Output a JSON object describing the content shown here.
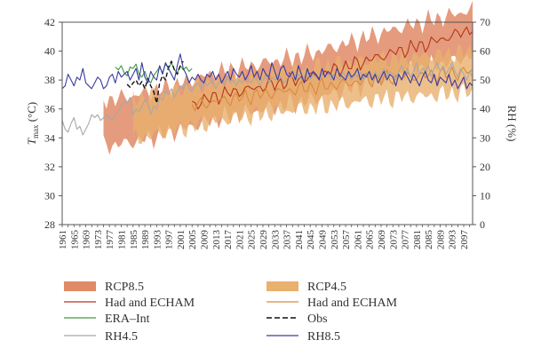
{
  "chart_data": {
    "type": "line",
    "x_start": 1961,
    "x_end": 2100,
    "x_tick_labels": [
      "1961",
      "1965",
      "1969",
      "1973",
      "1977",
      "1981",
      "1985",
      "1989",
      "1993",
      "1997",
      "2001",
      "2005",
      "2009",
      "2013",
      "2017",
      "2021",
      "2025",
      "2029",
      "2033",
      "2037",
      "2041",
      "2045",
      "2049",
      "2053",
      "2057",
      "2061",
      "2065",
      "2069",
      "2073",
      "2077",
      "2081",
      "2085",
      "2089",
      "2093",
      "2097"
    ],
    "y_left": {
      "label_main": "T",
      "label_sub": "max",
      "label_unit": " (°C)",
      "ylim": [
        28,
        42
      ],
      "ticks": [
        "28",
        "30",
        "32",
        "34",
        "36",
        "38",
        "40",
        "42"
      ]
    },
    "y_right": {
      "label": "RH (%)",
      "ylim": [
        0,
        70
      ],
      "ticks": [
        "0",
        "10",
        "20",
        "30",
        "40",
        "50",
        "60",
        "70"
      ]
    },
    "legend": [
      {
        "label": "RCP8.5",
        "kind": "band",
        "color": "#e08a66"
      },
      {
        "label": "RCP4.5",
        "kind": "band",
        "color": "#e9b06e"
      },
      {
        "label": "Had and ECHAM",
        "kind": "line",
        "color": "#b5361d"
      },
      {
        "label": "Had and ECHAM",
        "kind": "line",
        "color": "#d98a3c"
      },
      {
        "label": "ERA–Int",
        "kind": "line",
        "color": "#3d9a3d"
      },
      {
        "label": "Obs",
        "kind": "dash",
        "color": "#111111"
      },
      {
        "label": "RH4.5",
        "kind": "line",
        "color": "#a8a8a8"
      },
      {
        "label": "RH8.5",
        "kind": "line",
        "color": "#3a3aa0"
      }
    ],
    "series": [
      {
        "name": "RCP8.5",
        "axis": "left",
        "type": "band",
        "color": "#e08a66",
        "anchors_x": [
          1975,
          1985,
          1995,
          2005,
          2015,
          2025,
          2035,
          2045,
          2055,
          2065,
          2075,
          2085,
          2095,
          2100
        ],
        "anchors_mid": [
          35.0,
          35.3,
          35.8,
          36.4,
          37.0,
          37.4,
          37.8,
          38.2,
          38.8,
          39.4,
          40.0,
          40.5,
          41.0,
          41.3
        ],
        "half_width": 1.6
      },
      {
        "name": "RCP4.5",
        "axis": "left",
        "type": "band",
        "color": "#e9b06e",
        "anchors_x": [
          1985,
          1995,
          2005,
          2015,
          2025,
          2035,
          2045,
          2055,
          2065,
          2075,
          2085,
          2095,
          2100
        ],
        "anchors_mid": [
          35.3,
          35.7,
          36.2,
          36.6,
          36.9,
          37.2,
          37.5,
          37.7,
          38.0,
          38.2,
          38.3,
          38.5,
          38.6
        ],
        "half_width": 1.4
      },
      {
        "name": "Had and ECHAM",
        "axis": "left",
        "color": "#b5361d",
        "anchors_x": [
          2005,
          2015,
          2025,
          2035,
          2045,
          2055,
          2065,
          2075,
          2085,
          2095,
          2100
        ],
        "anchors_y": [
          36.3,
          37.0,
          37.4,
          37.8,
          38.2,
          38.8,
          39.4,
          40.0,
          40.5,
          41.2,
          41.6
        ]
      },
      {
        "name": "Had and ECHAM",
        "axis": "left",
        "color": "#d98a3c",
        "anchors_x": [
          2005,
          2015,
          2025,
          2035,
          2045,
          2055,
          2065,
          2075,
          2085,
          2095,
          2100
        ],
        "anchors_y": [
          36.2,
          36.6,
          36.9,
          37.2,
          37.5,
          37.7,
          38.0,
          38.2,
          38.3,
          38.5,
          38.6
        ]
      },
      {
        "name": "ERA–Int",
        "axis": "left",
        "color": "#3d9a3d",
        "x": [
          1979,
          1980,
          1981,
          1982,
          1983,
          1984,
          1985,
          1986,
          1987,
          1988,
          1989,
          1990,
          1991,
          1992,
          1993,
          1994,
          1995,
          1996,
          1997,
          1998,
          1999,
          2000,
          2001,
          2002,
          2003,
          2004,
          2005
        ],
        "y": [
          38.9,
          38.7,
          39.0,
          38.5,
          38.3,
          38.9,
          38.8,
          39.1,
          38.4,
          38.2,
          38.6,
          38.0,
          37.8,
          38.3,
          38.6,
          38.9,
          38.5,
          39.1,
          38.8,
          39.2,
          38.7,
          38.5,
          39.0,
          38.7,
          38.9,
          38.6,
          38.8
        ]
      },
      {
        "name": "Obs",
        "axis": "left",
        "color": "#111111",
        "dash": true,
        "x": [
          1983,
          1984,
          1985,
          1986,
          1987,
          1988,
          1989,
          1990,
          1991,
          1992,
          1993,
          1994,
          1995,
          1996,
          1997,
          1998,
          1999,
          2000,
          2001,
          2002
        ],
        "y": [
          37.7,
          37.5,
          37.8,
          38.0,
          37.6,
          37.9,
          37.4,
          38.1,
          37.6,
          37.2,
          36.4,
          37.8,
          38.3,
          38.0,
          38.9,
          39.3,
          38.7,
          38.4,
          39.0,
          39.3
        ]
      },
      {
        "name": "RH4.5",
        "axis": "right",
        "color": "#a8a8a8",
        "x": [
          1961,
          1962,
          1963,
          1964,
          1965,
          1966,
          1967,
          1968,
          1969,
          1970,
          1971,
          1972,
          1973,
          1974,
          1975,
          1976,
          1977,
          1978,
          1979,
          1980,
          1981,
          1982,
          1983,
          1984,
          1985,
          1986,
          1987,
          1988,
          1989,
          1990,
          1991,
          1992,
          1993,
          1994,
          1995,
          1996,
          1997,
          1998,
          1999,
          2000,
          2001,
          2002,
          2003,
          2004,
          2005,
          2006,
          2007,
          2008,
          2009,
          2010,
          2011,
          2012,
          2013,
          2014,
          2015,
          2016,
          2017,
          2018,
          2019,
          2020,
          2021,
          2022,
          2023,
          2024,
          2025,
          2026,
          2027,
          2028,
          2029,
          2030,
          2031,
          2032,
          2033,
          2034,
          2035,
          2036,
          2037,
          2038,
          2039,
          2040,
          2041,
          2042,
          2043,
          2044,
          2045,
          2046,
          2047,
          2048,
          2049,
          2050,
          2051,
          2052,
          2053,
          2054,
          2055,
          2056,
          2057,
          2058,
          2059,
          2060,
          2061,
          2062,
          2063,
          2064,
          2065,
          2066,
          2067,
          2068,
          2069,
          2070,
          2071,
          2072,
          2073,
          2074,
          2075,
          2076,
          2077,
          2078,
          2079,
          2080,
          2081,
          2082,
          2083,
          2084,
          2085,
          2086,
          2087,
          2088,
          2089,
          2090,
          2091,
          2092,
          2093,
          2094,
          2095,
          2096,
          2097,
          2098,
          2099,
          2100
        ],
        "y": [
          36,
          33,
          32,
          35,
          37,
          33,
          34,
          31,
          33,
          35,
          38,
          37,
          38,
          36,
          37,
          38,
          37,
          36,
          38,
          39,
          41,
          43,
          42,
          44,
          38,
          40,
          39,
          41,
          43,
          42,
          38,
          41,
          40,
          44,
          43,
          46,
          45,
          47,
          44,
          46,
          48,
          47,
          49,
          47,
          46,
          48,
          49,
          47,
          50,
          48,
          49,
          50,
          47,
          49,
          50,
          48,
          51,
          49,
          50,
          48,
          50,
          49,
          51,
          50,
          49,
          51,
          50,
          48,
          50,
          52,
          49,
          51,
          50,
          52,
          51,
          49,
          50,
          52,
          51,
          50,
          52,
          50,
          51,
          53,
          50,
          52,
          51,
          50,
          52,
          51,
          53,
          50,
          52,
          51,
          50,
          53,
          51,
          52,
          50,
          52,
          51,
          53,
          50,
          52,
          51,
          50,
          53,
          51,
          52,
          54,
          51,
          53,
          52,
          50,
          53,
          55,
          52,
          54,
          51,
          53,
          56,
          52,
          54,
          53,
          55,
          51,
          54,
          56,
          53,
          55,
          52,
          54,
          56,
          53,
          51,
          54,
          52,
          50,
          53,
          51
        ]
      },
      {
        "name": "RH8.5",
        "axis": "right",
        "color": "#3a3aa0",
        "x": [
          1961,
          1962,
          1963,
          1964,
          1965,
          1966,
          1967,
          1968,
          1969,
          1970,
          1971,
          1972,
          1973,
          1974,
          1975,
          1976,
          1977,
          1978,
          1979,
          1980,
          1981,
          1982,
          1983,
          1984,
          1985,
          1986,
          1987,
          1988,
          1989,
          1990,
          1991,
          1992,
          1993,
          1994,
          1995,
          1996,
          1997,
          1998,
          1999,
          2000,
          2001,
          2002,
          2003,
          2004,
          2005,
          2006,
          2007,
          2008,
          2009,
          2010,
          2011,
          2012,
          2013,
          2014,
          2015,
          2016,
          2017,
          2018,
          2019,
          2020,
          2021,
          2022,
          2023,
          2024,
          2025,
          2026,
          2027,
          2028,
          2029,
          2030,
          2031,
          2032,
          2033,
          2034,
          2035,
          2036,
          2037,
          2038,
          2039,
          2040,
          2041,
          2042,
          2043,
          2044,
          2045,
          2046,
          2047,
          2048,
          2049,
          2050,
          2051,
          2052,
          2053,
          2054,
          2055,
          2056,
          2057,
          2058,
          2059,
          2060,
          2061,
          2062,
          2063,
          2064,
          2065,
          2066,
          2067,
          2068,
          2069,
          2070,
          2071,
          2072,
          2073,
          2074,
          2075,
          2076,
          2077,
          2078,
          2079,
          2080,
          2081,
          2082,
          2083,
          2084,
          2085,
          2086,
          2087,
          2088,
          2089,
          2090,
          2091,
          2092,
          2093,
          2094,
          2095,
          2096,
          2097,
          2098,
          2099,
          2100
        ],
        "y": [
          47,
          48,
          52,
          50,
          48,
          51,
          50,
          54,
          49,
          48,
          47,
          49,
          51,
          50,
          47,
          48,
          51,
          52,
          49,
          53,
          51,
          52,
          53,
          50,
          52,
          54,
          50,
          56,
          51,
          49,
          53,
          51,
          50,
          55,
          52,
          56,
          54,
          52,
          50,
          55,
          59,
          54,
          52,
          49,
          51,
          50,
          52,
          50,
          49,
          52,
          51,
          53,
          50,
          52,
          49,
          51,
          53,
          50,
          54,
          52,
          51,
          53,
          50,
          52,
          55,
          51,
          53,
          50,
          54,
          52,
          51,
          56,
          53,
          50,
          54,
          55,
          52,
          51,
          53,
          50,
          55,
          52,
          49,
          54,
          51,
          53,
          52,
          50,
          54,
          51,
          53,
          52,
          50,
          54,
          52,
          51,
          50,
          53,
          51,
          52,
          54,
          50,
          52,
          51,
          53,
          50,
          52,
          49,
          51,
          53,
          50,
          52,
          51,
          48,
          52,
          50,
          53,
          51,
          49,
          52,
          50,
          48,
          51,
          53,
          50,
          49,
          52,
          48,
          51,
          50,
          49,
          52,
          48,
          50,
          47,
          49,
          51,
          47,
          49,
          48
        ]
      }
    ]
  }
}
